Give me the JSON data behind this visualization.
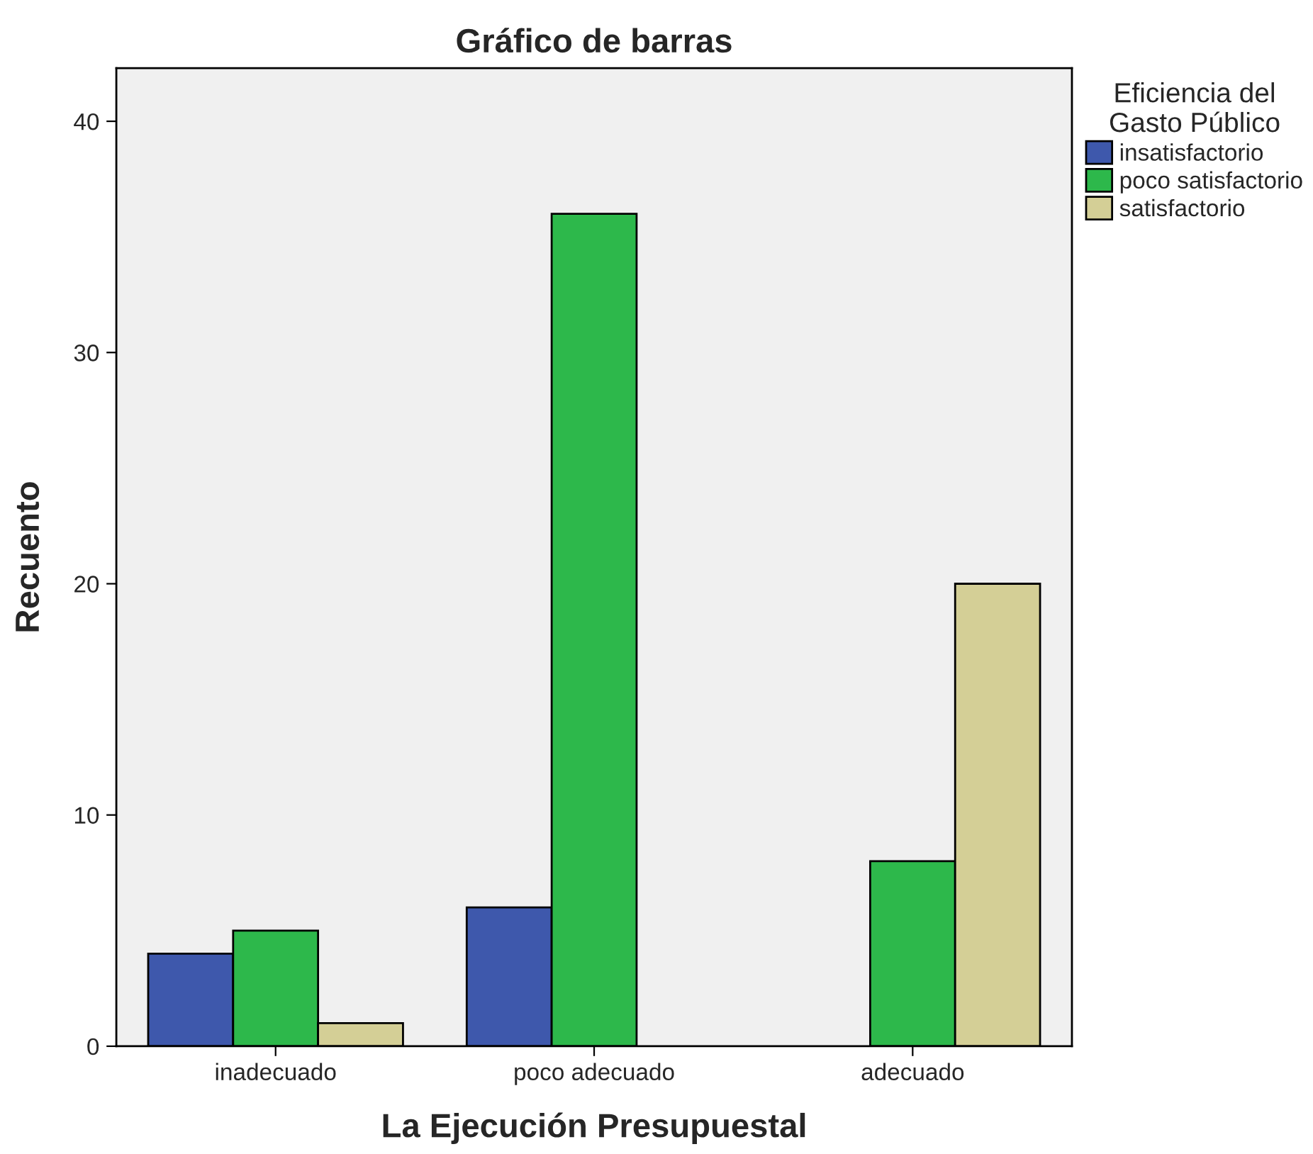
{
  "chart_data": {
    "type": "bar",
    "title": "Gráfico de barras",
    "xlabel": "La Ejecución Presupuestal",
    "ylabel": "Recuento",
    "legend_title": "Eficiencia del\nGasto Público",
    "categories": [
      "inadecuado",
      "poco adecuado",
      "adecuado"
    ],
    "series": [
      {
        "name": "insatisfactorio",
        "color": "#3e58ac",
        "values": [
          4,
          6,
          null
        ]
      },
      {
        "name": "poco satisfactorio",
        "color": "#2db84b",
        "values": [
          5,
          36,
          8
        ]
      },
      {
        "name": "satisfactorio",
        "color": "#d4cf96",
        "values": [
          1,
          null,
          20
        ]
      }
    ],
    "ylim": [
      0,
      42.3
    ],
    "yticks": [
      0,
      10,
      20,
      30,
      40
    ],
    "grid": false,
    "legend": "top right"
  }
}
